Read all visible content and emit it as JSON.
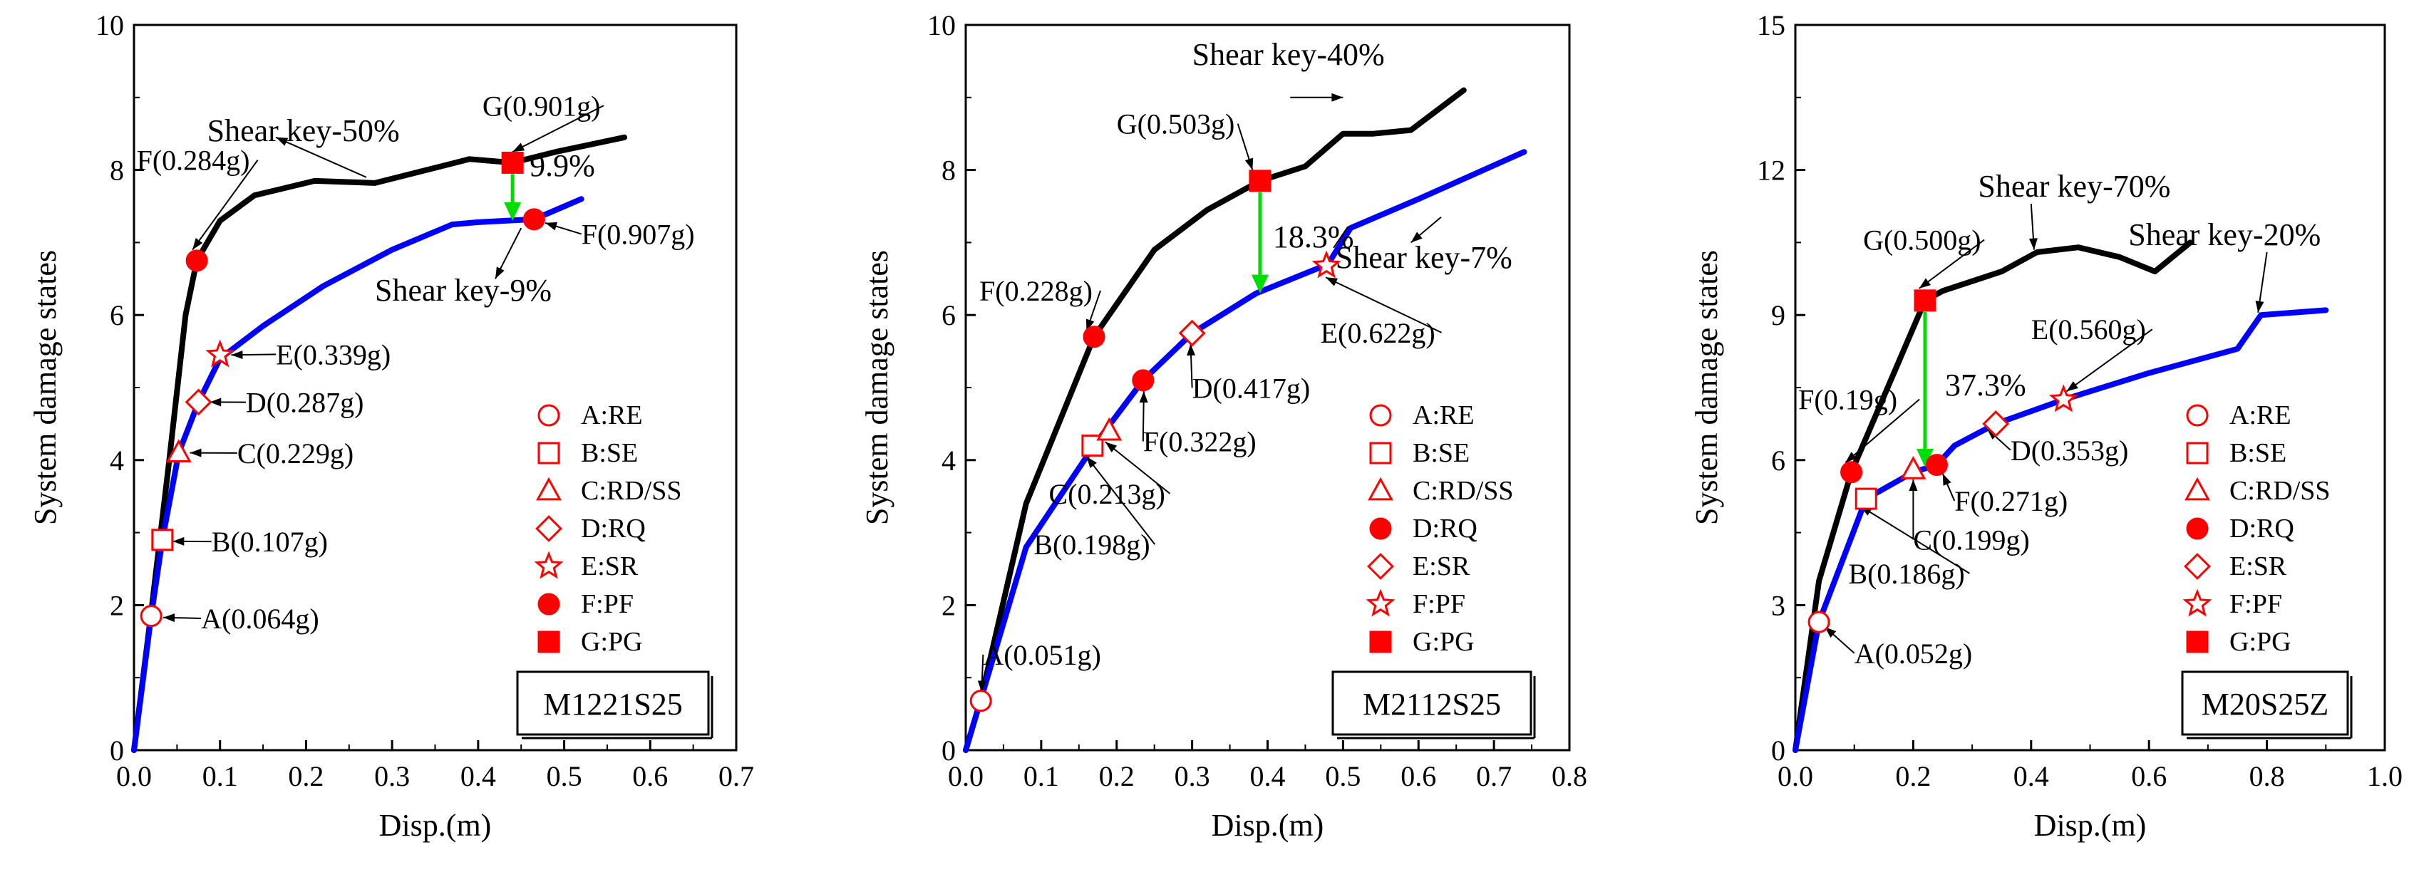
{
  "chart_data": [
    {
      "type": "line",
      "xlabel": "Disp.(m)",
      "ylabel": "System damage states",
      "xlim": [
        0,
        0.7
      ],
      "ylim": [
        0,
        10
      ],
      "xticks": [
        "0.0",
        "0.1",
        "0.2",
        "0.3",
        "0.4",
        "0.5",
        "0.6",
        "0.7"
      ],
      "yticks": [
        "0",
        "2",
        "4",
        "6",
        "8",
        "10"
      ],
      "panel_label": "M1221S25",
      "series": [
        {
          "name": "Shear key-50%",
          "color": "#000000",
          "x": [
            0,
            0.02,
            0.04,
            0.06,
            0.073,
            0.1,
            0.14,
            0.21,
            0.28,
            0.39,
            0.44,
            0.49,
            0.57
          ],
          "y": [
            0,
            1.9,
            3.9,
            6.0,
            6.75,
            7.3,
            7.65,
            7.85,
            7.82,
            8.15,
            8.1,
            8.25,
            8.45
          ]
        },
        {
          "name": "Shear key-9%",
          "color": "#0000ff",
          "x": [
            0,
            0.02,
            0.033,
            0.052,
            0.075,
            0.1,
            0.15,
            0.22,
            0.3,
            0.37,
            0.4,
            0.465,
            0.52
          ],
          "y": [
            0,
            1.85,
            2.9,
            4.1,
            4.8,
            5.4,
            5.85,
            6.4,
            6.9,
            7.25,
            7.28,
            7.32,
            7.6
          ]
        }
      ],
      "series_labels": [
        "Shear key-50%",
        "Shear key-9%"
      ],
      "markers": [
        {
          "x": 0.02,
          "y": 1.85,
          "shape": "circle-open",
          "label": "A(0.064g)"
        },
        {
          "x": 0.033,
          "y": 2.9,
          "shape": "square-open",
          "label": "B(0.107g)"
        },
        {
          "x": 0.052,
          "y": 4.1,
          "shape": "triangle-open",
          "label": "C(0.229g)"
        },
        {
          "x": 0.075,
          "y": 4.8,
          "shape": "diamond-open",
          "label": "D(0.287g)"
        },
        {
          "x": 0.1,
          "y": 5.45,
          "shape": "star-open",
          "label": "E(0.339g)"
        },
        {
          "x": 0.073,
          "y": 6.75,
          "shape": "circle-filled",
          "label": "F(0.284g)"
        },
        {
          "x": 0.44,
          "y": 8.1,
          "shape": "square-filled",
          "label": "G(0.901g)"
        },
        {
          "x": 0.465,
          "y": 7.32,
          "shape": "circle-filled",
          "label": "F(0.907g)"
        }
      ],
      "gap_annotation": {
        "x": 0.44,
        "y_from": 8.1,
        "y_to": 7.3,
        "text": "9.9%"
      },
      "legend": [
        "A:RE",
        "B:SE",
        "C:RD/SS",
        "D:RQ",
        "E:SR",
        "F:PF",
        "G:PG"
      ]
    },
    {
      "type": "line",
      "xlabel": "Disp.(m)",
      "ylabel": "System damage states",
      "xlim": [
        0,
        0.8
      ],
      "ylim": [
        0,
        10
      ],
      "xticks": [
        "0.0",
        "0.1",
        "0.2",
        "0.3",
        "0.4",
        "0.5",
        "0.6",
        "0.7",
        "0.8"
      ],
      "yticks": [
        "0",
        "2",
        "4",
        "6",
        "8",
        "10"
      ],
      "panel_label": "M2112S25",
      "series": [
        {
          "name": "Shear key-40%",
          "color": "#000000",
          "x": [
            0,
            0.02,
            0.08,
            0.17,
            0.25,
            0.32,
            0.39,
            0.45,
            0.5,
            0.54,
            0.59,
            0.66
          ],
          "y": [
            0,
            0.7,
            3.4,
            5.7,
            6.9,
            7.45,
            7.85,
            8.05,
            8.5,
            8.5,
            8.55,
            9.1
          ]
        },
        {
          "name": "Shear key-7%",
          "color": "#0000ff",
          "x": [
            0,
            0.02,
            0.08,
            0.17,
            0.235,
            0.3,
            0.385,
            0.48,
            0.51,
            0.6,
            0.74
          ],
          "y": [
            0,
            0.7,
            2.8,
            4.2,
            5.1,
            5.75,
            6.3,
            6.7,
            7.2,
            7.6,
            8.25
          ]
        }
      ],
      "series_labels": [
        "Shear key-40%",
        "Shear key-7%"
      ],
      "markers": [
        {
          "x": 0.02,
          "y": 0.68,
          "shape": "circle-open",
          "label": "A(0.051g)"
        },
        {
          "x": 0.168,
          "y": 4.2,
          "shape": "square-open",
          "label": "B(0.198g)"
        },
        {
          "x": 0.19,
          "y": 4.4,
          "shape": "triangle-open",
          "label": "C(0.213g)"
        },
        {
          "x": 0.235,
          "y": 5.1,
          "shape": "circle-filled",
          "label": "F(0.322g)"
        },
        {
          "x": 0.3,
          "y": 5.75,
          "shape": "diamond-open",
          "label": "D(0.417g)"
        },
        {
          "x": 0.478,
          "y": 6.68,
          "shape": "star-open",
          "label": "E(0.622g)"
        },
        {
          "x": 0.17,
          "y": 5.7,
          "shape": "circle-filled",
          "label": "F(0.228g)"
        },
        {
          "x": 0.39,
          "y": 7.85,
          "shape": "square-filled",
          "label": "G(0.503g)"
        }
      ],
      "gap_annotation": {
        "x": 0.39,
        "y_from": 7.85,
        "y_to": 6.3,
        "text": "18.3%"
      },
      "legend": [
        "A:RE",
        "B:SE",
        "C:RD/SS",
        "D:RQ",
        "E:SR",
        "F:PF",
        "G:PG"
      ]
    },
    {
      "type": "line",
      "xlabel": "Disp.(m)",
      "ylabel": "System damage states",
      "xlim": [
        0,
        1.0
      ],
      "ylim": [
        0,
        15
      ],
      "xticks": [
        "0.0",
        "0.2",
        "0.4",
        "0.6",
        "0.8",
        "1.0"
      ],
      "yticks": [
        "0",
        "3",
        "6",
        "9",
        "12",
        "15"
      ],
      "panel_label": "M20S25Z",
      "series": [
        {
          "name": "Shear key-70%",
          "color": "#000000",
          "x": [
            0,
            0.04,
            0.095,
            0.22,
            0.25,
            0.35,
            0.41,
            0.48,
            0.55,
            0.61,
            0.67
          ],
          "y": [
            0,
            3.5,
            5.75,
            9.3,
            9.5,
            9.9,
            10.3,
            10.4,
            10.2,
            9.9,
            10.5
          ]
        },
        {
          "name": "Shear key-20%",
          "color": "#0000ff",
          "x": [
            0,
            0.04,
            0.12,
            0.2,
            0.24,
            0.27,
            0.34,
            0.455,
            0.6,
            0.75,
            0.79,
            0.9
          ],
          "y": [
            0,
            2.65,
            5.2,
            5.75,
            5.9,
            6.3,
            6.75,
            7.25,
            7.8,
            8.3,
            9.0,
            9.1
          ]
        }
      ],
      "series_labels": [
        "Shear key-70%",
        "Shear key-20%"
      ],
      "markers": [
        {
          "x": 0.04,
          "y": 2.65,
          "shape": "circle-open",
          "label": "A(0.052g)"
        },
        {
          "x": 0.12,
          "y": 5.2,
          "shape": "square-open",
          "label": "B(0.186g)"
        },
        {
          "x": 0.2,
          "y": 5.8,
          "shape": "triangle-open",
          "label": "C(0.199g)"
        },
        {
          "x": 0.34,
          "y": 6.75,
          "shape": "diamond-open",
          "label": "D(0.353g)"
        },
        {
          "x": 0.455,
          "y": 7.25,
          "shape": "star-open",
          "label": "E(0.560g)"
        },
        {
          "x": 0.095,
          "y": 5.75,
          "shape": "circle-filled",
          "label": "F(0.19g)"
        },
        {
          "x": 0.24,
          "y": 5.9,
          "shape": "circle-filled",
          "label": "F(0.271g)"
        },
        {
          "x": 0.22,
          "y": 9.3,
          "shape": "square-filled",
          "label": "G(0.500g)"
        }
      ],
      "gap_annotation": {
        "x": 0.22,
        "y_from": 9.3,
        "y_to": 5.85,
        "text": "37.3%"
      },
      "legend": [
        "A:RE",
        "B:SE",
        "C:RD/SS",
        "D:RQ",
        "E:SR",
        "F:PF",
        "G:PG"
      ]
    }
  ]
}
